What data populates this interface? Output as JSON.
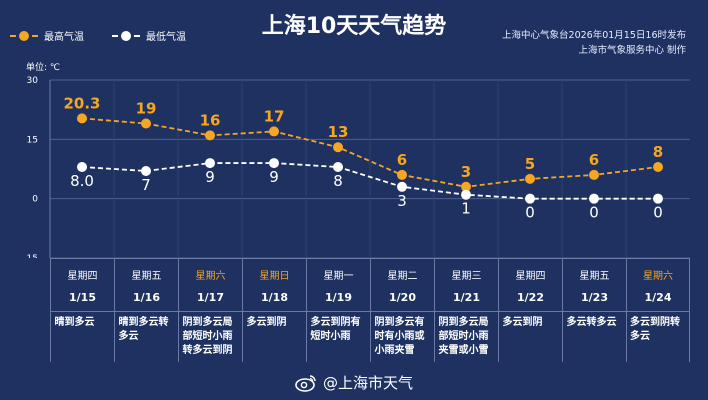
{
  "title": "上海10天天气趋势",
  "legend": {
    "high": "最高气温",
    "low": "最低气温"
  },
  "publisher": {
    "line1": "上海中心气象台2026年01月15日16时发布",
    "line2": "上海市气象服务中心  制作"
  },
  "unit_label": "单位: ℃",
  "colors": {
    "background": "#1e3160",
    "high": "#f5a623",
    "low": "#ffffff",
    "weekend": "#f5a623"
  },
  "chart_data": {
    "type": "line",
    "categories": [
      "1/15",
      "1/16",
      "1/17",
      "1/18",
      "1/19",
      "1/20",
      "1/21",
      "1/22",
      "1/23",
      "1/24"
    ],
    "series": [
      {
        "name": "最高气温",
        "values": [
          20.3,
          19,
          16,
          17,
          13,
          6,
          3,
          5,
          6,
          8
        ],
        "labels": [
          "20.3",
          "19",
          "16",
          "17",
          "13",
          "6",
          "3",
          "5",
          "6",
          "8"
        ]
      },
      {
        "name": "最低气温",
        "values": [
          8.0,
          7,
          9,
          9,
          8,
          3,
          1,
          0,
          0,
          0
        ],
        "labels": [
          "8.0",
          "7",
          "9",
          "9",
          "8",
          "3",
          "1",
          "0",
          "0",
          "0"
        ]
      }
    ],
    "yticks": [
      "30",
      "15",
      "0",
      "-15"
    ],
    "ylim": [
      -15,
      30
    ],
    "grid": true
  },
  "days": [
    {
      "weekday": "星期四",
      "date": "1/15",
      "weather": "晴到多云",
      "weekend": false
    },
    {
      "weekday": "星期五",
      "date": "1/16",
      "weather": "晴到多云转多云",
      "weekend": false
    },
    {
      "weekday": "星期六",
      "date": "1/17",
      "weather": "阴到多云局部短时小雨转多云到阴",
      "weekend": true
    },
    {
      "weekday": "星期日",
      "date": "1/18",
      "weather": "多云到阴",
      "weekend": true
    },
    {
      "weekday": "星期一",
      "date": "1/19",
      "weather": "多云到阴有短时小雨",
      "weekend": false
    },
    {
      "weekday": "星期二",
      "date": "1/20",
      "weather": "阴到多云有时有小雨或小雨夹雪",
      "weekend": false
    },
    {
      "weekday": "星期三",
      "date": "1/21",
      "weather": "阴到多云局部短时小雨夹雪或小雪",
      "weekend": false
    },
    {
      "weekday": "星期四",
      "date": "1/22",
      "weather": "多云到阴",
      "weekend": false
    },
    {
      "weekday": "星期五",
      "date": "1/23",
      "weather": "多云转多云",
      "weekend": false
    },
    {
      "weekday": "星期六",
      "date": "1/24",
      "weather": "多云到阴转多云",
      "weekend": true
    }
  ],
  "footer": {
    "text": "@上海市天气",
    "icon": "weibo-icon"
  }
}
